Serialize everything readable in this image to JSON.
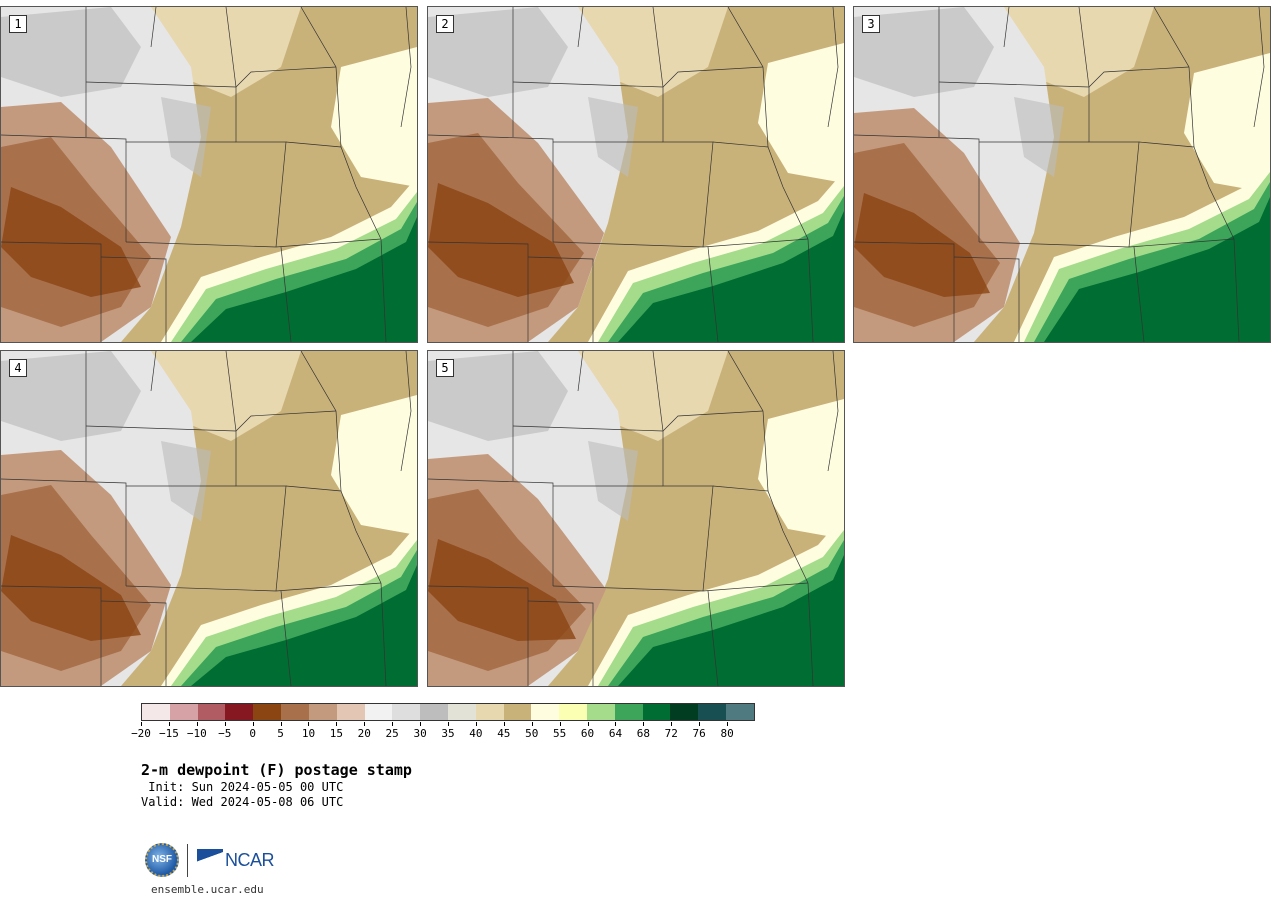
{
  "panels": [
    {
      "label": "1",
      "variant": 0
    },
    {
      "label": "2",
      "variant": 1
    },
    {
      "label": "3",
      "variant": 2
    },
    {
      "label": "4",
      "variant": 3
    },
    {
      "label": "5",
      "variant": 4
    }
  ],
  "colorbar": {
    "colors": [
      "#f5e8e8",
      "#d6a2a6",
      "#b15c62",
      "#861822",
      "#8b4513",
      "#a8714b",
      "#c49a7e",
      "#e3c6b4",
      "#f2f2f2",
      "#dedede",
      "#bdbdbd",
      "#e2e2d6",
      "#e8d8b0",
      "#c9b27a",
      "#fffde0",
      "#faffb4",
      "#a4dc8c",
      "#3ca55a",
      "#006d32",
      "#013d20",
      "#174f52",
      "#4f7a80"
    ],
    "tick_labels": [
      "−20",
      "−15",
      "−10",
      "−5",
      "0",
      "5",
      "10",
      "15",
      "20",
      "25",
      "30",
      "35",
      "40",
      "45",
      "50",
      "55",
      "60",
      "64",
      "68",
      "72",
      "76",
      "80"
    ]
  },
  "title": "2-m dewpoint (F) postage stamp",
  "init": " Init: Sun 2024-05-05 00 UTC",
  "valid": "Valid: Wed 2024-05-08 06 UTC",
  "logo": {
    "nsf": "NSF",
    "ncar": "NCAR"
  },
  "url": "ensemble.ucar.edu"
}
